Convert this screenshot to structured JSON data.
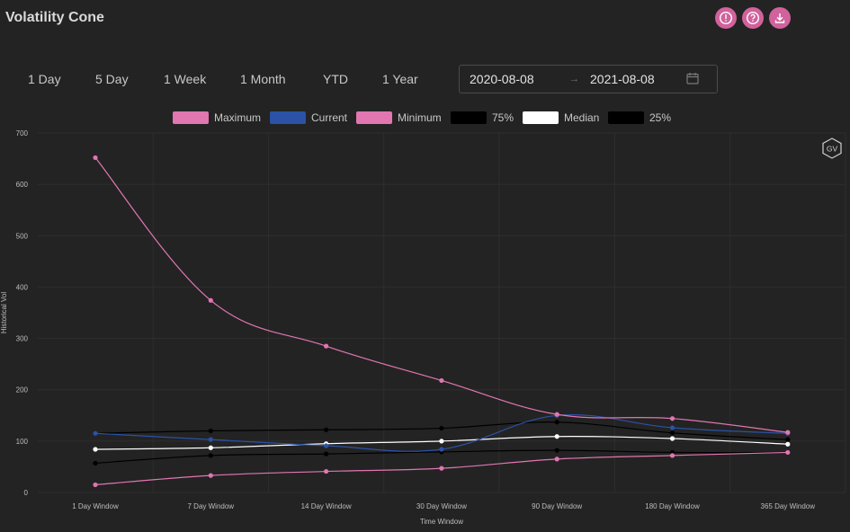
{
  "page": {
    "title": "Volatility Cone",
    "header_icons": [
      "alert-icon",
      "help-icon",
      "download-icon"
    ]
  },
  "range_tabs": [
    "1 Day",
    "5 Day",
    "1 Week",
    "1 Month",
    "YTD",
    "1 Year"
  ],
  "date_range": {
    "start": "2020-08-08",
    "end": "2021-08-08"
  },
  "badge": "GV",
  "colors": {
    "background": "#232323",
    "maximum": "#e176b1",
    "current": "#2b52a6",
    "minimum": "#e176b1",
    "p75": "#000000",
    "median": "#ffffff",
    "p25": "#000000"
  },
  "chart_data": {
    "type": "line",
    "xlabel": "Time Window",
    "ylabel": "Historical Vol",
    "ylim": [
      0,
      700
    ],
    "yticks": [
      0,
      100,
      200,
      300,
      400,
      500,
      600,
      700
    ],
    "grid": true,
    "legend_position": "top",
    "categories": [
      "1 Day Window",
      "7 Day Window",
      "14 Day Window",
      "30 Day Window",
      "90 Day Window",
      "180 Day Window",
      "365 Day Window"
    ],
    "series": [
      {
        "name": "Maximum",
        "color": "#e176b1",
        "values": [
          652,
          374,
          285,
          218,
          152,
          144,
          117
        ]
      },
      {
        "name": "Current",
        "color": "#2b52a6",
        "values": [
          115,
          103,
          91,
          84,
          150,
          126,
          115
        ]
      },
      {
        "name": "Minimum",
        "color": "#e176b1",
        "values": [
          15,
          33,
          41,
          47,
          65,
          72,
          78
        ]
      },
      {
        "name": "75%",
        "color": "#000000",
        "values": [
          115,
          120,
          122,
          125,
          137,
          116,
          103
        ]
      },
      {
        "name": "Median",
        "color": "#ffffff",
        "values": [
          84,
          87,
          95,
          100,
          109,
          105,
          94
        ]
      },
      {
        "name": "25%",
        "color": "#000000",
        "values": [
          57,
          72,
          75,
          79,
          82,
          78,
          78
        ]
      }
    ]
  }
}
